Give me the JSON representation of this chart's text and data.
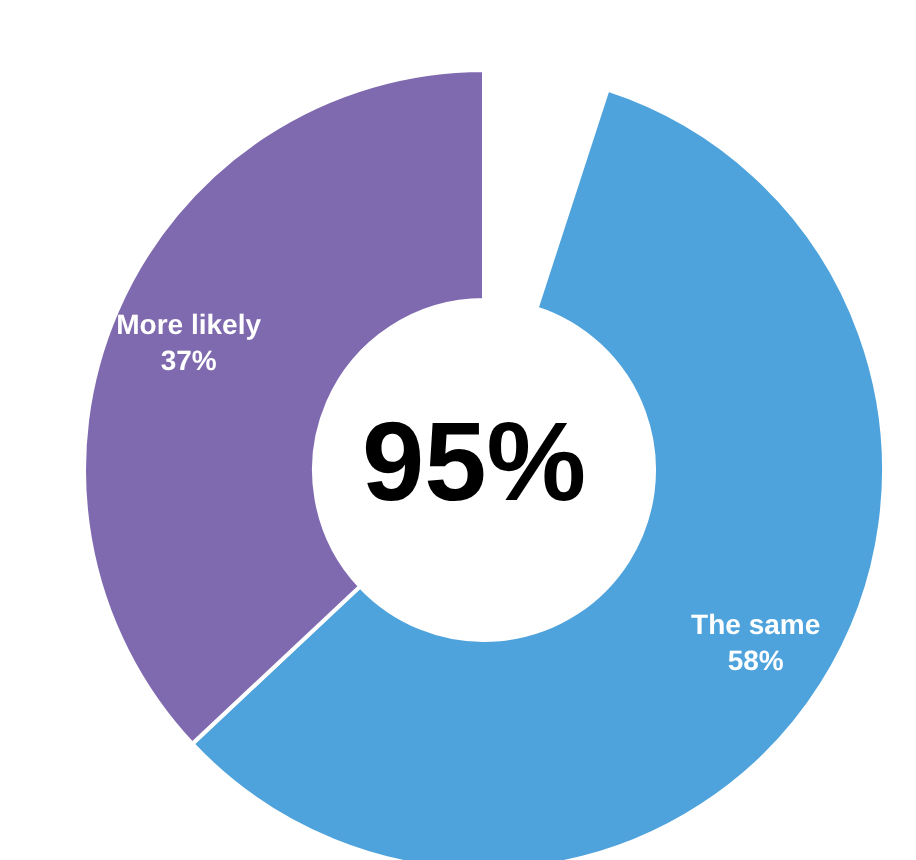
{
  "chart_data": {
    "type": "donut",
    "categories": [
      "The same",
      "More likely"
    ],
    "values": [
      58,
      37
    ],
    "colors": [
      "#4fa3dc",
      "#7f6ab0"
    ],
    "value_labels": [
      "58%",
      "37%"
    ],
    "annotations": [
      "95%"
    ]
  }
}
